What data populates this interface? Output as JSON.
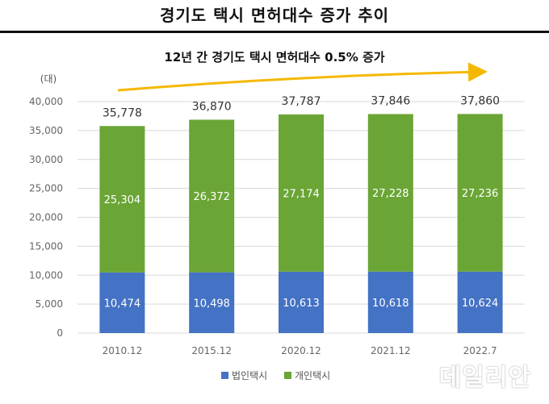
{
  "title": "경기도 택시 면허대수 증가 추이",
  "chart_data": {
    "type": "bar",
    "stacked": true,
    "subtitle": "12년 간 경기도 택시 면허대수 0.5% 증가",
    "ylabel": "(대)",
    "ylim": [
      0,
      40000
    ],
    "yticks": [
      0,
      5000,
      10000,
      15000,
      20000,
      25000,
      30000,
      35000,
      40000
    ],
    "ytick_labels": [
      "0",
      "5,000",
      "10,000",
      "15,000",
      "20,000",
      "25,000",
      "30,000",
      "35,000",
      "40,000"
    ],
    "grid": true,
    "legend_position": "bottom",
    "categories": [
      "2010.12",
      "2015.12",
      "2020.12",
      "2021.12",
      "2022.7"
    ],
    "series": [
      {
        "name": "법인택시",
        "color": "#4472C4",
        "values": [
          10474,
          10498,
          10613,
          10618,
          10624
        ],
        "labels": [
          "10,474",
          "10,498",
          "10,613",
          "10,618",
          "10,624"
        ]
      },
      {
        "name": "개인택시",
        "color": "#6AA535",
        "values": [
          25304,
          26372,
          27174,
          27228,
          27236
        ],
        "labels": [
          "25,304",
          "26,372",
          "27,174",
          "27,228",
          "27,236"
        ]
      }
    ],
    "totals": [
      35778,
      36870,
      37787,
      37846,
      37860
    ],
    "total_labels": [
      "35,778",
      "36,870",
      "37,787",
      "37,846",
      "37,860"
    ],
    "trend_arrow_color": "#F5B800"
  },
  "watermark": "데일리안"
}
